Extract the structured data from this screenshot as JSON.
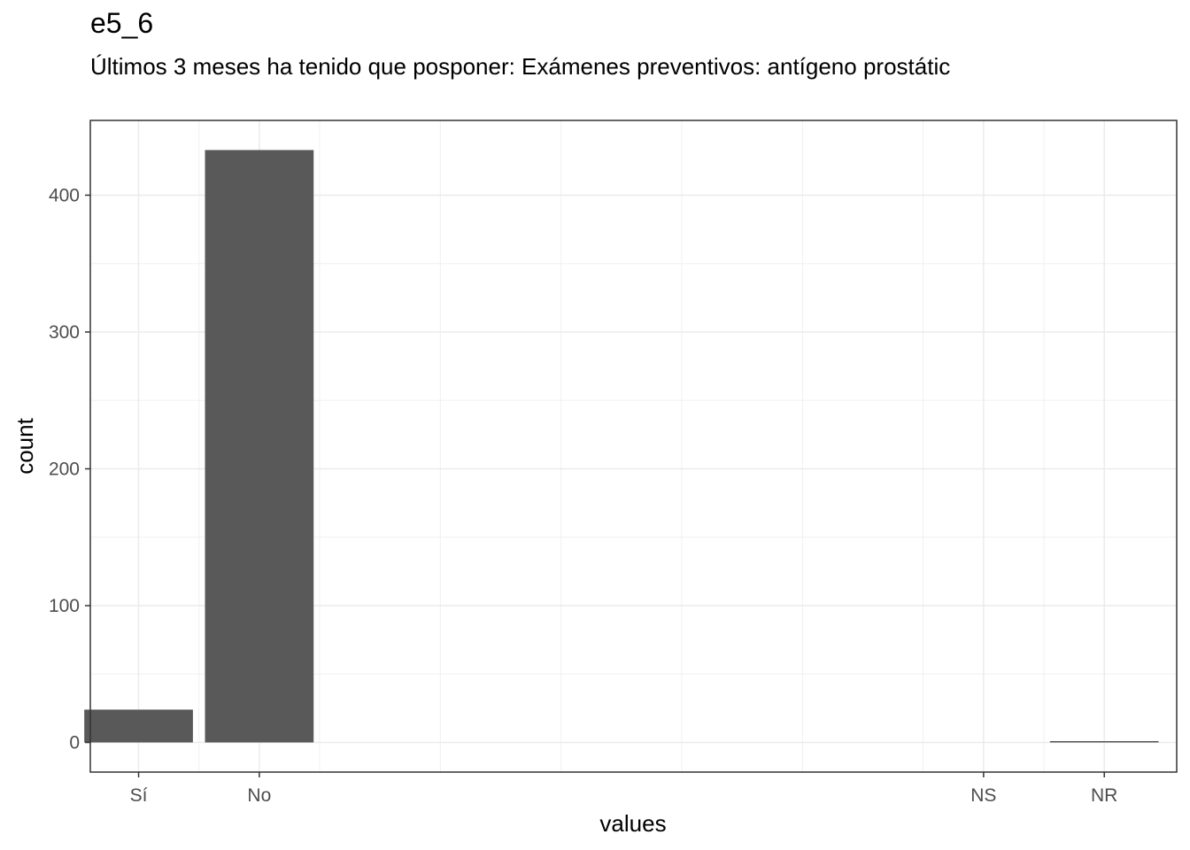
{
  "chart_data": {
    "type": "bar",
    "title": "e5_6",
    "subtitle": "Últimos 3 meses ha tenido que posponer: Exámenes preventivos: antígeno prostátic",
    "xlabel": "values",
    "ylabel": "count",
    "categories": [
      "Sí",
      "No",
      "NS",
      "NR"
    ],
    "x_positions": [
      1,
      2,
      8,
      9
    ],
    "values": [
      24,
      433,
      0,
      1
    ],
    "xlim": [
      0.6,
      9.6
    ],
    "ylim": [
      -21.65,
      454.65
    ],
    "y_ticks": [
      0,
      100,
      200,
      300,
      400
    ],
    "y_tick_labels": [
      "0",
      "100",
      "200",
      "300",
      "400"
    ],
    "bar_color": "#595959",
    "grid": true,
    "theme": "bw"
  }
}
